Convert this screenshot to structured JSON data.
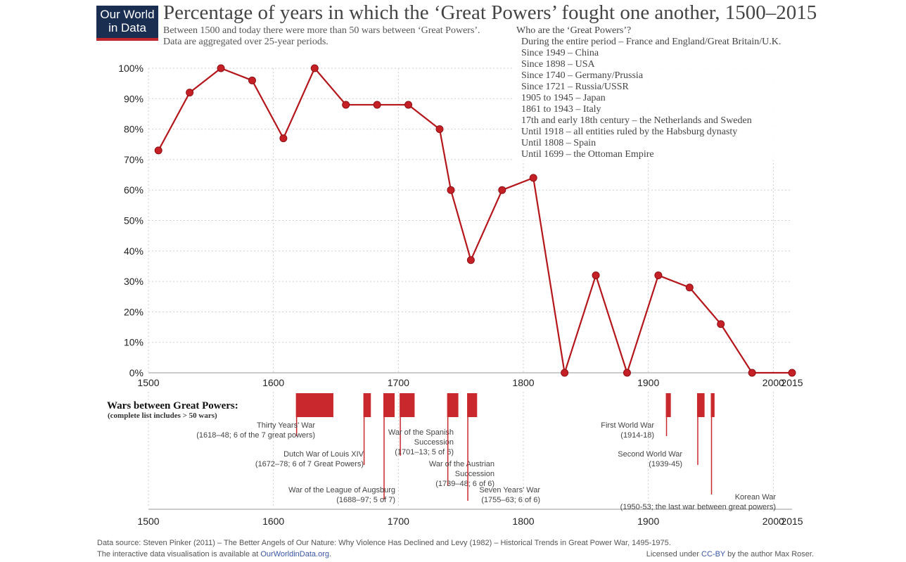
{
  "logo": {
    "line1": "Our World",
    "line2": "in Data"
  },
  "title": "Percentage of years in which the ‘Great Powers’ fought one another, 1500–2015",
  "subtitle": {
    "line1": "Between 1500 and today there were more than 50 wars between ‘Great Powers’.",
    "line2": "Data are aggregated over 25-year periods."
  },
  "powers_box": {
    "heading": "Who are the ‘Great Powers’?",
    "items": [
      "During the entire period – France and England/Great Britain/U.K.",
      "Since 1949 – China",
      "Since 1898 – USA",
      "Since 1740 – Germany/Prussia",
      "Since 1721 – Russia/USSR",
      "1905 to 1945 – Japan",
      "1861 to 1943 – Italy",
      "17th and early 18th century – the Netherlands and Sweden",
      "Until 1918 – all entities ruled by the Habsburg dynasty",
      "Until 1808 – Spain",
      "Until 1699 – the Ottoman Empire"
    ]
  },
  "chart_data": {
    "type": "line",
    "xlim": [
      1500,
      2015
    ],
    "ylim": [
      0,
      100
    ],
    "x_ticks": [
      "1500",
      "1600",
      "1700",
      "1800",
      "1900",
      "2000",
      "2015"
    ],
    "x_tick_values": [
      1500,
      1600,
      1700,
      1800,
      1900,
      2000,
      2015
    ],
    "y_ticks": [
      "0%",
      "10%",
      "20%",
      "30%",
      "40%",
      "50%",
      "60%",
      "70%",
      "80%",
      "90%",
      "100%"
    ],
    "y_tick_values": [
      0,
      10,
      20,
      30,
      40,
      50,
      60,
      70,
      80,
      90,
      100
    ],
    "grid": true,
    "color": "#b5161b",
    "series": [
      {
        "x": [
          1508,
          1533,
          1558,
          1583,
          1608,
          1633,
          1658,
          1683,
          1708,
          1733,
          1742,
          1758,
          1783,
          1808,
          1833,
          1858,
          1883,
          1908,
          1933,
          1958,
          1983,
          2015
        ],
        "y": [
          73,
          92,
          100,
          96,
          77,
          100,
          88,
          88,
          88,
          80,
          60,
          37,
          60,
          64,
          0,
          32,
          0,
          32,
          28,
          16,
          0,
          0
        ]
      }
    ]
  },
  "wars": {
    "heading": "Wars between Great Powers:",
    "subheading": "(complete list includes > 50 wars)",
    "color": "#c9282d",
    "items": [
      {
        "start": 1618,
        "end": 1648,
        "name": "Thirty Years' War",
        "detail": "(1618–48; 6 of the 7 great powers)"
      },
      {
        "start": 1672,
        "end": 1678,
        "name": "Dutch War of Louis XIV",
        "detail": "(1672–78; 6 of 7 Great Powers)"
      },
      {
        "start": 1688,
        "end": 1697,
        "name": "War of the League of Augsburg",
        "detail": "(1688–97; 5 of 7)"
      },
      {
        "start": 1701,
        "end": 1713,
        "name": "War of the Spanish",
        "name2": "Succession",
        "detail": "(1701–13; 5 of 6)"
      },
      {
        "start": 1739,
        "end": 1748,
        "name": "War of the Austrian",
        "name2": "Succession",
        "detail": "(1739–48; 6 of 6)"
      },
      {
        "start": 1755,
        "end": 1763,
        "name": "Seven Years' War",
        "detail": "(1755–63; 6 of 6)"
      },
      {
        "start": 1914,
        "end": 1918,
        "name": "First World War",
        "detail": "(1914-18)"
      },
      {
        "start": 1939,
        "end": 1945,
        "name": "Second World War",
        "detail": "(1939-45)"
      },
      {
        "start": 1950,
        "end": 1953,
        "name": "Korean War",
        "detail": "(1950-53; the last war between great powers)"
      }
    ]
  },
  "footer": {
    "source": "Data source: Steven Pinker (2011) – The Better Angels of Our Nature: Why Violence Has Declined and Levy (1982) – Historical Trends in Great Power War, 1495-1975.",
    "interactive_prefix": "The interactive data visualisation is available at ",
    "interactive_link": "OurWorldinData.org",
    "interactive_suffix": ".",
    "license_prefix": "Licensed under ",
    "license_link": "CC-BY",
    "license_suffix": " by the author Max Roser."
  }
}
